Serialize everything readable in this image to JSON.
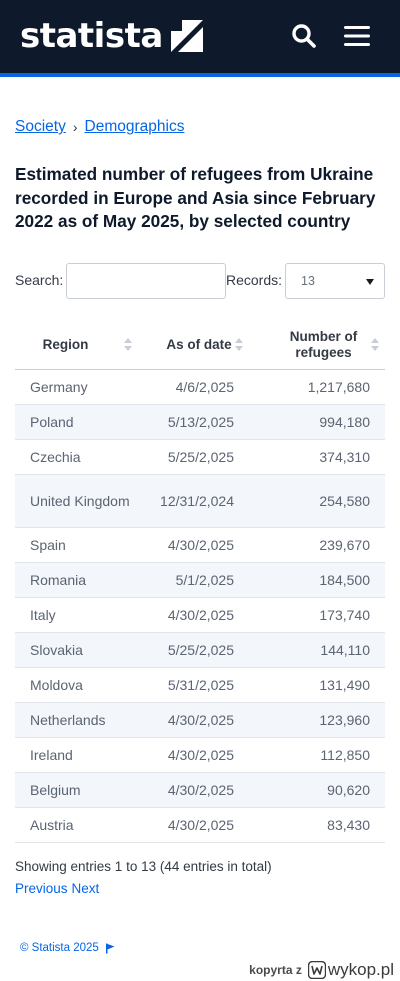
{
  "header": {
    "logo_text": "statista",
    "colors": {
      "bar": "#0e1a2b",
      "accent_line": "#0666e5",
      "link": "#0666e5"
    },
    "icons": [
      "search-icon",
      "hamburger-menu-icon"
    ]
  },
  "breadcrumb": {
    "items": [
      "Society",
      "Demographics"
    ],
    "separator": "›"
  },
  "title": "Estimated number of refugees from Ukraine recorded in Europe and Asia since February 2022 as of May 2025, by selected country",
  "controls": {
    "search_label": "Search:",
    "search_value": "",
    "records_label": "Records:",
    "records_value": "13"
  },
  "table": {
    "headers": {
      "region": "Region",
      "date": "As of date",
      "refugees": "Number of refugees"
    },
    "rows": [
      {
        "region": "Germany",
        "date": "4/6/2,025",
        "refugees": "1,217,680"
      },
      {
        "region": "Poland",
        "date": "5/13/2,025",
        "refugees": "994,180"
      },
      {
        "region": "Czechia",
        "date": "5/25/2,025",
        "refugees": "374,310"
      },
      {
        "region": "United Kingdom",
        "date": "12/31/2,024",
        "refugees": "254,580"
      },
      {
        "region": "Spain",
        "date": "4/30/2,025",
        "refugees": "239,670"
      },
      {
        "region": "Romania",
        "date": "5/1/2,025",
        "refugees": "184,500"
      },
      {
        "region": "Italy",
        "date": "4/30/2,025",
        "refugees": "173,740"
      },
      {
        "region": "Slovakia",
        "date": "5/25/2,025",
        "refugees": "144,110"
      },
      {
        "region": "Moldova",
        "date": "5/31/2,025",
        "refugees": "131,490"
      },
      {
        "region": "Netherlands",
        "date": "4/30/2,025",
        "refugees": "123,960"
      },
      {
        "region": "Ireland",
        "date": "4/30/2,025",
        "refugees": "112,850"
      },
      {
        "region": "Belgium",
        "date": "4/30/2,025",
        "refugees": "90,620"
      },
      {
        "region": "Austria",
        "date": "4/30/2,025",
        "refugees": "83,430"
      }
    ]
  },
  "footer": {
    "entries_text": "Showing entries 1 to 13 (44 entries in total)",
    "previous_label": "Previous",
    "next_label": "Next",
    "copyright": "© Statista 2025"
  },
  "watermark": {
    "prefix": "kopyrta z",
    "brand": "wykop.pl"
  }
}
